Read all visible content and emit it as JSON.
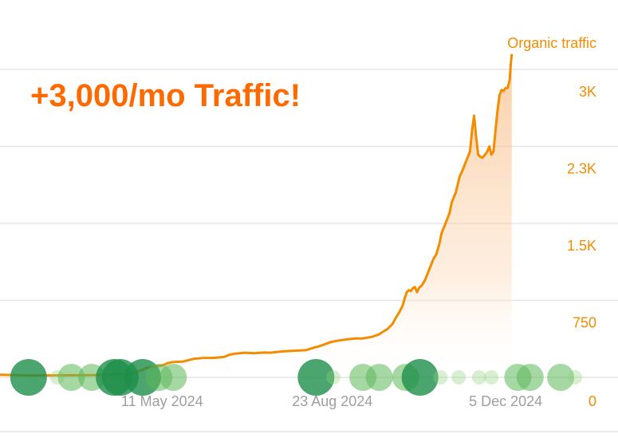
{
  "chart_data": {
    "type": "area",
    "title": "+3,000/mo Traffic!",
    "series": [
      {
        "name": "Organic traffic",
        "color": "#f28c00",
        "points": [
          [
            0,
            25
          ],
          [
            10,
            23
          ],
          [
            20,
            20
          ],
          [
            30,
            18
          ],
          [
            40,
            20
          ],
          [
            50,
            19
          ],
          [
            60,
            20
          ],
          [
            70,
            20
          ],
          [
            80,
            22
          ],
          [
            90,
            22
          ],
          [
            100,
            24
          ],
          [
            105,
            25
          ],
          [
            110,
            28
          ],
          [
            115,
            32
          ],
          [
            120,
            30
          ],
          [
            125,
            32
          ],
          [
            130,
            45
          ],
          [
            135,
            55
          ],
          [
            140,
            75
          ],
          [
            143,
            90
          ],
          [
            148,
            100
          ],
          [
            155,
            110
          ],
          [
            160,
            120
          ],
          [
            165,
            140
          ],
          [
            170,
            150
          ],
          [
            180,
            155
          ],
          [
            190,
            180
          ],
          [
            200,
            190
          ],
          [
            210,
            190
          ],
          [
            220,
            200
          ],
          [
            225,
            220
          ],
          [
            230,
            230
          ],
          [
            240,
            240
          ],
          [
            250,
            235
          ],
          [
            255,
            240
          ],
          [
            260,
            242
          ],
          [
            265,
            240
          ],
          [
            275,
            250
          ],
          [
            280,
            255
          ],
          [
            290,
            260
          ],
          [
            300,
            265
          ],
          [
            308,
            290
          ],
          [
            312,
            300
          ],
          [
            318,
            320
          ],
          [
            325,
            345
          ],
          [
            330,
            355
          ],
          [
            340,
            370
          ],
          [
            350,
            380
          ],
          [
            355,
            378
          ],
          [
            365,
            395
          ],
          [
            372,
            420
          ],
          [
            375,
            440
          ],
          [
            380,
            470
          ],
          [
            385,
            520
          ],
          [
            388,
            575
          ],
          [
            392,
            640
          ],
          [
            395,
            700
          ],
          [
            397,
            770
          ],
          [
            399,
            830
          ],
          [
            401,
            850
          ],
          [
            403,
            840
          ],
          [
            405,
            870
          ],
          [
            407,
            880
          ],
          [
            409,
            830
          ],
          [
            411,
            870
          ],
          [
            414,
            900
          ],
          [
            417,
            950
          ],
          [
            419,
            1000
          ],
          [
            421,
            1050
          ],
          [
            423,
            1100
          ],
          [
            425,
            1150
          ],
          [
            428,
            1200
          ],
          [
            431,
            1300
          ],
          [
            433,
            1400
          ],
          [
            435,
            1450
          ],
          [
            437,
            1500
          ],
          [
            439,
            1550
          ],
          [
            441,
            1600
          ],
          [
            443,
            1700
          ],
          [
            445,
            1750
          ],
          [
            447,
            1800
          ],
          [
            449,
            1880
          ],
          [
            451,
            1960
          ],
          [
            453,
            2000
          ],
          [
            455,
            2050
          ],
          [
            457,
            2100
          ],
          [
            459,
            2150
          ],
          [
            461,
            2200
          ],
          [
            463,
            2400
          ],
          [
            465,
            2550
          ],
          [
            467,
            2350
          ],
          [
            469,
            2170
          ],
          [
            471,
            2150
          ],
          [
            473,
            2140
          ],
          [
            475,
            2160
          ],
          [
            478,
            2200
          ],
          [
            480,
            2250
          ],
          [
            482,
            2170
          ],
          [
            484,
            2200
          ],
          [
            486,
            2400
          ],
          [
            488,
            2600
          ],
          [
            490,
            2750
          ],
          [
            492,
            2800
          ],
          [
            494,
            2790
          ],
          [
            496,
            2820
          ],
          [
            498,
            2820
          ],
          [
            500,
            2900
          ],
          [
            501,
            3050
          ],
          [
            502,
            3150
          ]
        ]
      }
    ],
    "x_ticks": [
      "11 May 2024",
      "23 Aug 2024",
      "5 Dec 2024"
    ],
    "x_tick_positions": [
      159,
      326,
      496
    ],
    "x_range": [
      0,
      510
    ],
    "y_ticks": [
      {
        "value": 0,
        "label": "0"
      },
      {
        "value": 750,
        "label": "750"
      },
      {
        "value": 1500,
        "label": "1.5K"
      },
      {
        "value": 2250,
        "label": "2.3K"
      },
      {
        "value": 3000,
        "label": "3K"
      }
    ],
    "ylim": [
      0,
      3000
    ],
    "grid": true,
    "legend_position": "top-right",
    "markers": {
      "color": "#2e9e4f",
      "x": [
        28,
        56,
        70,
        90,
        112,
        118,
        140,
        156,
        170,
        310,
        327,
        356,
        372,
        398,
        412,
        432,
        450,
        470,
        482,
        508,
        520,
        550,
        564
      ],
      "size": [
        3,
        1,
        2,
        2,
        3,
        3,
        3,
        2,
        2,
        3,
        1,
        2,
        2,
        2,
        3,
        1,
        1,
        1,
        1,
        2,
        2,
        2,
        1
      ]
    }
  }
}
